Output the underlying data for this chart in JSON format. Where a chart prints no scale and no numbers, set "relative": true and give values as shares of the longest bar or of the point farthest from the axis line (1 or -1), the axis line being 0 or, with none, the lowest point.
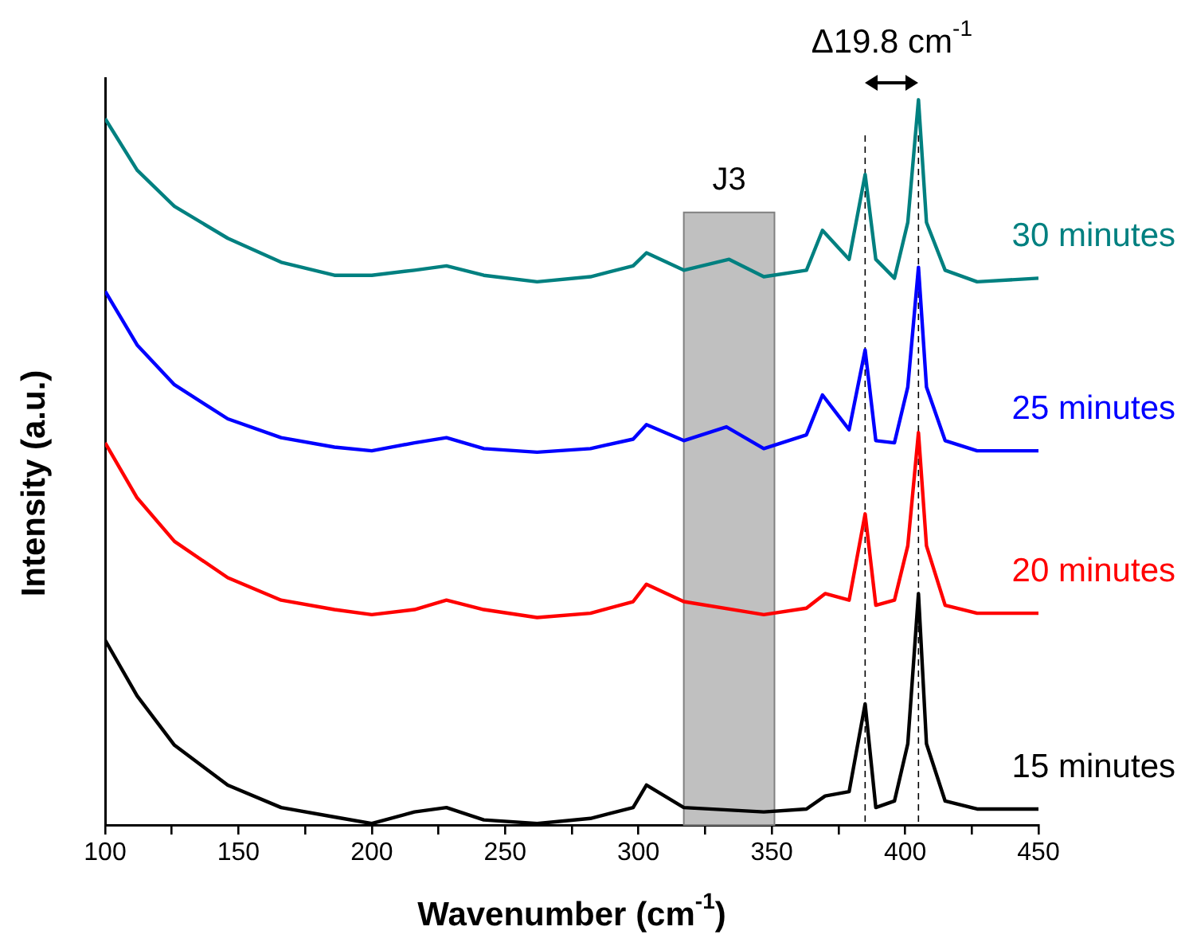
{
  "chart_data": {
    "type": "line",
    "relative": true,
    "xlabel": "Wavenumber (cm$^{-1}$)",
    "ylabel": "Intensity (a.u.)",
    "xlim": [
      100,
      450
    ],
    "xticks": [
      100,
      {
        "value": 125,
        "label": null
      },
      150,
      {
        "value": 175,
        "label": null
      },
      200,
      {
        "value": 225,
        "label": null
      },
      250,
      {
        "value": 275,
        "label": null
      },
      300,
      {
        "value": 325,
        "label": null
      },
      350,
      {
        "value": 375,
        "label": null
      },
      400,
      {
        "value": 425,
        "label": null
      },
      450
    ],
    "grid": false,
    "legend": false,
    "marker": "none",
    "line_style": "solid",
    "series": [
      {
        "name": "15 minutes",
        "color": "#000000",
        "x": [
          100,
          112,
          126,
          146,
          166,
          186,
          200,
          216,
          228,
          242,
          262,
          282,
          298,
          303,
          317,
          347,
          363,
          370,
          379,
          385,
          389,
          396,
          401,
          405,
          408,
          415,
          427,
          450
        ],
        "values": [
          0.255,
          0.178,
          0.11,
          0.055,
          0.024,
          0.011,
          0.002,
          0.018,
          0.024,
          0.007,
          0.002,
          0.009,
          0.024,
          0.055,
          0.024,
          0.018,
          0.022,
          0.04,
          0.046,
          0.167,
          0.024,
          0.033,
          0.112,
          0.319,
          0.112,
          0.033,
          0.022,
          0.022
        ]
      },
      {
        "name": "20 minutes",
        "color": "#ff0000",
        "x": [
          100,
          112,
          126,
          146,
          166,
          186,
          200,
          216,
          228,
          242,
          262,
          282,
          298,
          303,
          317,
          347,
          363,
          370,
          379,
          385,
          389,
          396,
          401,
          405,
          408,
          415,
          427,
          450
        ],
        "values": [
          0.527,
          0.451,
          0.391,
          0.341,
          0.31,
          0.297,
          0.29,
          0.297,
          0.31,
          0.297,
          0.286,
          0.292,
          0.308,
          0.332,
          0.308,
          0.29,
          0.299,
          0.319,
          0.31,
          0.429,
          0.303,
          0.31,
          0.385,
          0.541,
          0.385,
          0.303,
          0.292,
          0.292
        ]
      },
      {
        "name": "25 minutes",
        "color": "#0000ff",
        "x": [
          100,
          112,
          126,
          146,
          166,
          186,
          200,
          216,
          228,
          242,
          262,
          282,
          298,
          303,
          317,
          333,
          347,
          363,
          369,
          379,
          385,
          389,
          396,
          401,
          405,
          408,
          415,
          427,
          450
        ],
        "values": [
          0.736,
          0.662,
          0.607,
          0.56,
          0.534,
          0.521,
          0.516,
          0.527,
          0.534,
          0.519,
          0.514,
          0.519,
          0.532,
          0.552,
          0.53,
          0.549,
          0.519,
          0.538,
          0.593,
          0.545,
          0.655,
          0.53,
          0.527,
          0.604,
          0.769,
          0.604,
          0.53,
          0.516,
          0.516
        ]
      },
      {
        "name": "30 minutes",
        "color": "#008080",
        "x": [
          100,
          112,
          126,
          146,
          166,
          186,
          200,
          216,
          228,
          242,
          262,
          282,
          298,
          303,
          317,
          334,
          347,
          363,
          369,
          379,
          385,
          389,
          396,
          401,
          405,
          408,
          415,
          427,
          450
        ],
        "values": [
          0.974,
          0.903,
          0.853,
          0.809,
          0.776,
          0.758,
          0.758,
          0.765,
          0.771,
          0.758,
          0.749,
          0.756,
          0.771,
          0.789,
          0.765,
          0.78,
          0.756,
          0.765,
          0.82,
          0.78,
          0.897,
          0.78,
          0.754,
          0.831,
          1,
          0.831,
          0.765,
          0.749,
          0.754
        ]
      }
    ],
    "bands": [
      {
        "axis": "x",
        "from": 317,
        "to": 351,
        "label": "J3",
        "color": "#c0c0c0"
      }
    ],
    "ref_lines": [
      {
        "axis": "x",
        "value": 385,
        "color": "#000000",
        "line_style": "dashed"
      },
      {
        "axis": "x",
        "value": 405,
        "color": "#000000",
        "line_style": "dashed"
      }
    ],
    "annotations": [
      "Δ19.8 cm$^{-1}$"
    ]
  }
}
